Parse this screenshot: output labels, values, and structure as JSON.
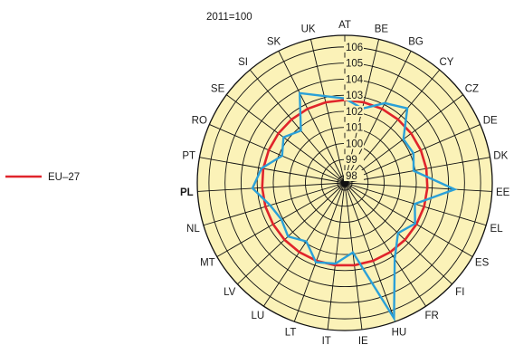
{
  "chart_data": {
    "type": "radar",
    "title": "2011=100",
    "categories": [
      "AT",
      "BE",
      "BG",
      "CY",
      "CZ",
      "DE",
      "DK",
      "EE",
      "EL",
      "ES",
      "FI",
      "FR",
      "HU",
      "IE",
      "IT",
      "LT",
      "LU",
      "LV",
      "MT",
      "NL",
      "PL",
      "PT",
      "RO",
      "SE",
      "SI",
      "SK",
      "UK"
    ],
    "highlight_category": "PL",
    "r_ticks": [
      98,
      99,
      100,
      101,
      102,
      103,
      104,
      105,
      106
    ],
    "r_range": [
      98,
      106.5
    ],
    "series": [
      {
        "name": "EU–27",
        "color": "#e0242b",
        "values": [
          102.7,
          102.7,
          102.7,
          102.7,
          102.7,
          102.7,
          102.7,
          102.7,
          102.7,
          102.7,
          102.7,
          102.7,
          102.7,
          102.7,
          102.7,
          102.7,
          102.7,
          102.7,
          102.7,
          102.7,
          102.7,
          102.7,
          102.7,
          102.7,
          102.7,
          102.7,
          102.7
        ]
      },
      {
        "name": "",
        "color": "#2aa0d8",
        "values": [
          102.8,
          102.3,
          103.1,
          103.6,
          102.1,
          102.2,
          101.9,
          104.4,
          102.1,
          102.6,
          102.1,
          103.2,
          106.5,
          101.9,
          102.6,
          102.8,
          101.9,
          102.4,
          102.1,
          102.4,
          103.3,
          102.8,
          101.8,
          102.3,
          101.8,
          103.8,
          103.1
        ]
      }
    ],
    "legend": {
      "placement": "left",
      "entries": [
        "EU–27"
      ]
    },
    "grid": true,
    "background_color": "#fbf2b8"
  }
}
